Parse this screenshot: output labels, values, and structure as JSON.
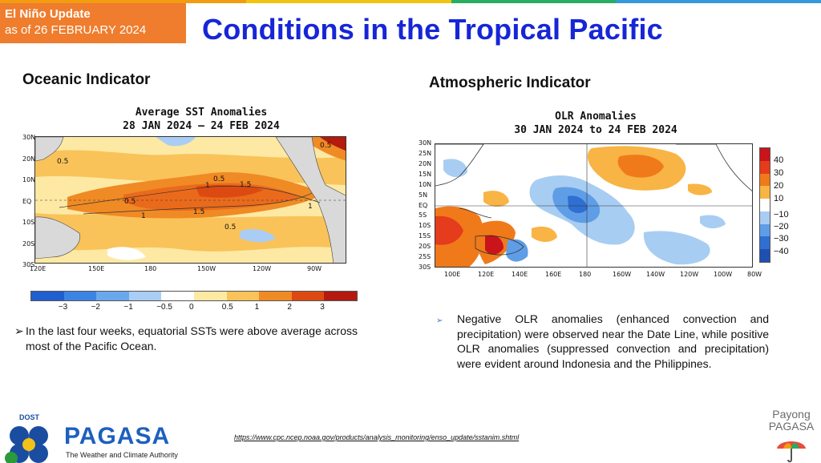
{
  "header": {
    "badge_line1": "El Niño Update",
    "badge_line2": "as of 26 FEBRUARY 2024",
    "title": "Conditions in the Tropical Pacific"
  },
  "oceanic": {
    "heading": "Oceanic Indicator",
    "map_title_1": "Average SST Anomalies",
    "map_title_2": "28 JAN 2024 — 24 FEB 2024",
    "lat_labels": [
      "30N",
      "20N",
      "10N",
      "EQ",
      "10S",
      "20S",
      "30S"
    ],
    "lon_labels": [
      "120E",
      "150E",
      "180",
      "150W",
      "120W",
      "90W"
    ],
    "contour_labels": [
      "0.5",
      "1",
      "1.5",
      "1.5",
      "1",
      "0.5",
      "0.5",
      "1",
      "0.5",
      "0.5"
    ],
    "colorbar_labels": [
      "−3",
      "−2",
      "−1",
      "−0.5",
      "0",
      "0.5",
      "1",
      "2",
      "3"
    ],
    "colorbar_colors": [
      "#1f5fd0",
      "#3c84e4",
      "#6aa8ee",
      "#a9cdf5",
      "#ffffff",
      "#fde9a3",
      "#f9c35a",
      "#f08a24",
      "#dc4a12",
      "#b41a0e"
    ],
    "bullet": "In the last four weeks, equatorial SSTs were above average across most of the Pacific Ocean."
  },
  "atmospheric": {
    "heading": "Atmospheric Indicator",
    "map_title_1": "OLR Anomalies",
    "map_title_2": "30 JAN 2024 to 24 FEB 2024",
    "lat_labels": [
      "30N",
      "25N",
      "20N",
      "15N",
      "10N",
      "5N",
      "EQ",
      "5S",
      "10S",
      "15S",
      "20S",
      "25S",
      "30S"
    ],
    "lon_labels": [
      "100E",
      "120E",
      "140E",
      "160E",
      "180",
      "160W",
      "140W",
      "120W",
      "100W",
      "80W"
    ],
    "colorbar_labels": [
      "40",
      "30",
      "20",
      "10",
      "−10",
      "−20",
      "−30",
      "−40"
    ],
    "colorbar_colors": [
      "#c9141b",
      "#e43c1c",
      "#f07a1a",
      "#f8b444",
      "#ffffff",
      "#a8cdf2",
      "#5f9ee6",
      "#2f6fd2",
      "#1f4fb0"
    ],
    "bullet": "Negative OLR anomalies (enhanced convection and precipitation) were observed near the Date Line, while positive OLR anomalies (suppressed convection and precipitation) were evident around Indonesia and the Philippines."
  },
  "footer": {
    "logo_top": "DOST",
    "logo_name": "PAGASA",
    "logo_tagline": "The Weather and Climate Authority",
    "source_url": "https://www.cpc.ncep.noaa.gov/products/analysis_monitoring/enso_update/sstanim.shtml",
    "right_logo_line1": "Payong",
    "right_logo_line2": "PAGASA"
  }
}
